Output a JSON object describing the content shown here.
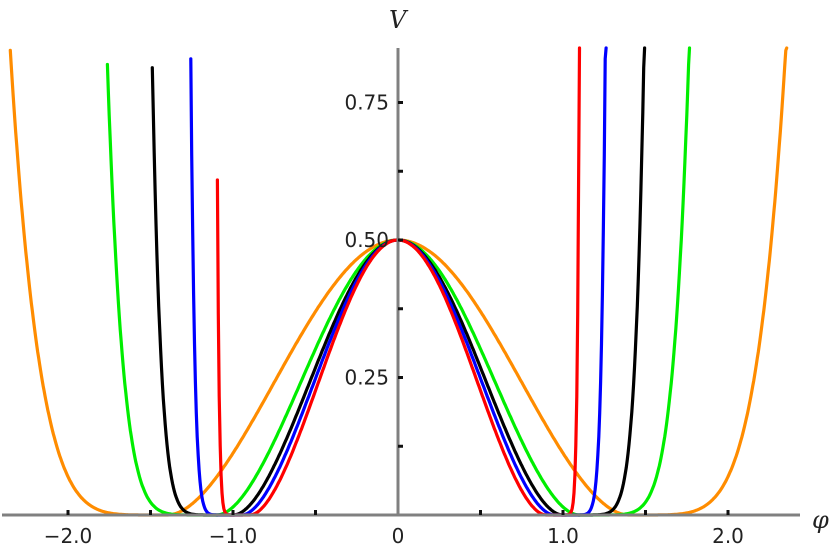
{
  "chart_data": {
    "type": "line",
    "title": "",
    "xlabel": "φ",
    "ylabel": "V",
    "xlim": [
      -2.4,
      2.6
    ],
    "ylim": [
      0,
      0.86
    ],
    "grid": false,
    "legend": "none",
    "x_ticks": [
      -2.0,
      -1.5,
      -1.0,
      -0.5,
      0.5,
      1.0,
      1.5,
      2.0
    ],
    "x_tick_labels": [
      {
        "value": -2.0,
        "label": "−2.0"
      },
      {
        "value": -1.0,
        "label": "−1.0"
      },
      {
        "value": 0.0,
        "label": "0"
      },
      {
        "value": 1.0,
        "label": "1.0"
      },
      {
        "value": 2.0,
        "label": "2.0"
      }
    ],
    "y_ticks": [
      0.125,
      0.25,
      0.375,
      0.5,
      0.625,
      0.75
    ],
    "y_tick_labels": [
      {
        "value": 0.25,
        "label": "0.25"
      },
      {
        "value": 0.5,
        "label": "0.50"
      },
      {
        "value": 0.75,
        "label": "0.75"
      }
    ],
    "series": [
      {
        "color": "#FF8C00",
        "minimum_at": 1.4,
        "zero_crossing": 2.38
      },
      {
        "color": "#00EE00",
        "minimum_at": 1.1,
        "zero_crossing": 1.78
      },
      {
        "color": "#000000",
        "minimum_at": 1.0,
        "zero_crossing": 1.5
      },
      {
        "color": "#0000FF",
        "minimum_at": 0.95,
        "zero_crossing": 1.26
      },
      {
        "color": "#FF0000",
        "minimum_at": 0.9,
        "zero_crossing": 1.1
      }
    ]
  }
}
